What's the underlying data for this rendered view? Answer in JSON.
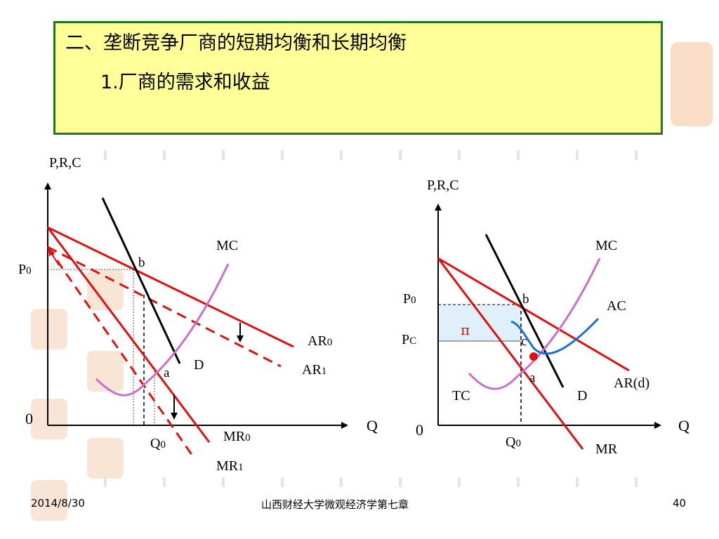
{
  "slide": {
    "heading": "二、垄断竞争厂商的短期均衡和长期均衡",
    "subheading": "1.厂商的需求和收益"
  },
  "left_diagram": {
    "y_axis_label": "P,R,C",
    "x_axis_label": "Q",
    "origin": "0",
    "price_label": "P",
    "price_sub": "0",
    "quantity_label": "Q",
    "quantity_sub": "0",
    "curves": {
      "mc": "MC",
      "d": "D",
      "ar0": "AR",
      "ar0_sub": "0",
      "ar1": "AR",
      "ar1_sub": "1",
      "mr0": "MR",
      "mr0_sub": "0",
      "mr1": "MR",
      "mr1_sub": "1"
    },
    "points": {
      "b": "b",
      "a": "a"
    }
  },
  "right_diagram": {
    "y_axis_label": "P,R,C",
    "x_axis_label": "Q",
    "origin": "0",
    "price_label": "P",
    "price_sub": "0",
    "cost_label": "P",
    "cost_sub": "C",
    "quantity_label": "Q",
    "quantity_sub": "0",
    "profit_symbol": "π",
    "curves": {
      "mc": "MC",
      "ac": "AC",
      "ard": "AR(d)",
      "d": "D",
      "mr": "MR",
      "tc": "TC"
    },
    "points": {
      "b": "b",
      "c": "c",
      "a": "a"
    }
  },
  "footer": {
    "date": "2014/8/30",
    "source": "山西财经大学微观经济学第七章",
    "page": "40"
  },
  "colors": {
    "red": "#e01010",
    "mc_purple": "#cc6ecc",
    "ac_blue": "#1a6fcf",
    "profit_fill": "#dff0fb",
    "title_bg": "#ffff99",
    "title_border": "#1f7a1f"
  }
}
